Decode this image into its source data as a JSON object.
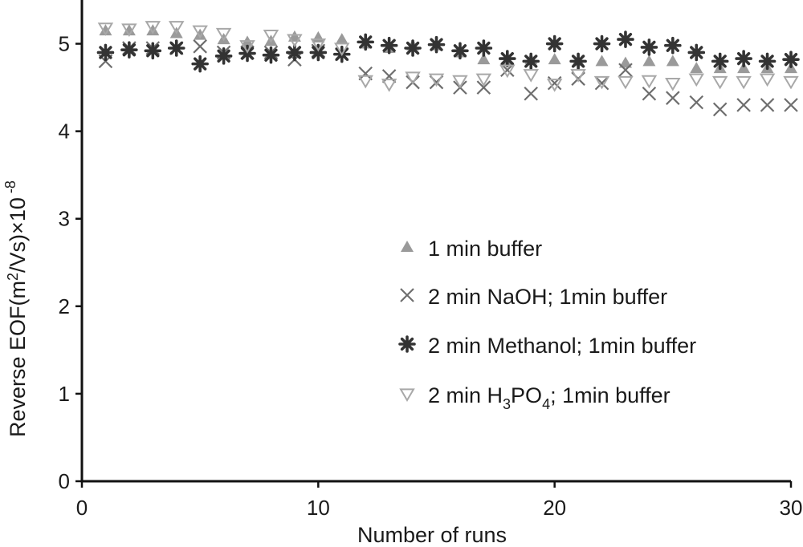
{
  "chart_data": {
    "type": "scatter",
    "xlabel": "Number of runs",
    "ylabel_main": "Reverse EOF(m",
    "ylabel_sup": "2",
    "ylabel_rest": "/Vs)×10",
    "ylabel_exp": " -8",
    "xlim": [
      0,
      30
    ],
    "ylim": [
      0,
      5.5
    ],
    "xticks": [
      0,
      10,
      20,
      30
    ],
    "yticks": [
      0,
      1,
      2,
      3,
      4,
      5
    ],
    "grid": false,
    "legend_position": "center-right",
    "series": [
      {
        "name": "1 min buffer",
        "marker": "triangle-up",
        "color": "#9a9a9a",
        "x": [
          1,
          2,
          3,
          4,
          5,
          6,
          7,
          8,
          9,
          10,
          11,
          12,
          13,
          14,
          15,
          16,
          17,
          18,
          19,
          20,
          21,
          22,
          23,
          24,
          25,
          26,
          27,
          28,
          29,
          30
        ],
        "y": [
          5.15,
          5.15,
          5.15,
          5.12,
          5.1,
          5.05,
          5.02,
          5.03,
          5.08,
          5.07,
          5.05,
          5.0,
          4.95,
          4.98,
          4.98,
          4.9,
          4.82,
          4.8,
          4.82,
          4.82,
          4.8,
          4.8,
          4.78,
          4.8,
          4.8,
          4.72,
          4.72,
          4.72,
          4.72,
          4.72
        ]
      },
      {
        "name": "2 min NaOH; 1min buffer",
        "marker": "x",
        "color": "#6e6e6e",
        "x": [
          1,
          2,
          3,
          4,
          5,
          6,
          7,
          8,
          9,
          10,
          11,
          12,
          13,
          14,
          15,
          16,
          17,
          18,
          19,
          20,
          21,
          22,
          23,
          24,
          25,
          26,
          27,
          28,
          29,
          30
        ],
        "y": [
          4.8,
          4.95,
          4.95,
          4.95,
          4.97,
          4.9,
          4.9,
          4.9,
          4.82,
          4.92,
          4.88,
          4.66,
          4.63,
          4.56,
          4.56,
          4.5,
          4.5,
          4.7,
          4.43,
          4.55,
          4.6,
          4.55,
          4.7,
          4.43,
          4.38,
          4.33,
          4.25,
          4.3,
          4.3,
          4.3
        ]
      },
      {
        "name": "2 min Methanol; 1min buffer",
        "marker": "asterisk",
        "color": "#333333",
        "x": [
          1,
          2,
          3,
          4,
          5,
          6,
          7,
          8,
          9,
          10,
          11,
          12,
          13,
          14,
          15,
          16,
          17,
          18,
          19,
          20,
          21,
          22,
          23,
          24,
          25,
          26,
          27,
          28,
          29,
          30
        ],
        "y": [
          4.9,
          4.93,
          4.92,
          4.95,
          4.77,
          4.86,
          4.89,
          4.87,
          4.9,
          4.9,
          4.88,
          5.02,
          4.98,
          4.95,
          4.99,
          4.92,
          4.95,
          4.83,
          4.8,
          5.0,
          4.8,
          5.0,
          5.05,
          4.96,
          4.98,
          4.9,
          4.8,
          4.83,
          4.8,
          4.82
        ]
      },
      {
        "name": "2 min H3PO4; 1min buffer",
        "marker": "triangle-down",
        "color": "#a8a8a8",
        "x": [
          1,
          2,
          3,
          4,
          5,
          6,
          7,
          8,
          9,
          10,
          11,
          12,
          13,
          14,
          15,
          16,
          17,
          18,
          19,
          20,
          21,
          22,
          23,
          24,
          25,
          26,
          27,
          28,
          29,
          30
        ],
        "y": [
          5.18,
          5.17,
          5.2,
          5.2,
          5.15,
          5.12,
          4.98,
          5.1,
          5.05,
          5.0,
          4.95,
          4.58,
          4.54,
          4.62,
          4.6,
          4.58,
          4.6,
          4.7,
          4.65,
          4.54,
          4.65,
          4.57,
          4.57,
          4.58,
          4.55,
          4.6,
          4.57,
          4.57,
          4.6,
          4.57
        ]
      }
    ],
    "legend": [
      {
        "prefix": "1 min buffer",
        "sub": "",
        "mid": "",
        "sub2": "",
        "suffix": ""
      },
      {
        "prefix": "2 min NaOH; 1min buffer",
        "sub": "",
        "mid": "",
        "sub2": "",
        "suffix": ""
      },
      {
        "prefix": "2 min Methanol; 1min buffer",
        "sub": "",
        "mid": "",
        "sub2": "",
        "suffix": ""
      },
      {
        "prefix": "2 min H",
        "sub": "3",
        "mid": "PO",
        "sub2": "4",
        "suffix": "; 1min buffer"
      }
    ]
  }
}
